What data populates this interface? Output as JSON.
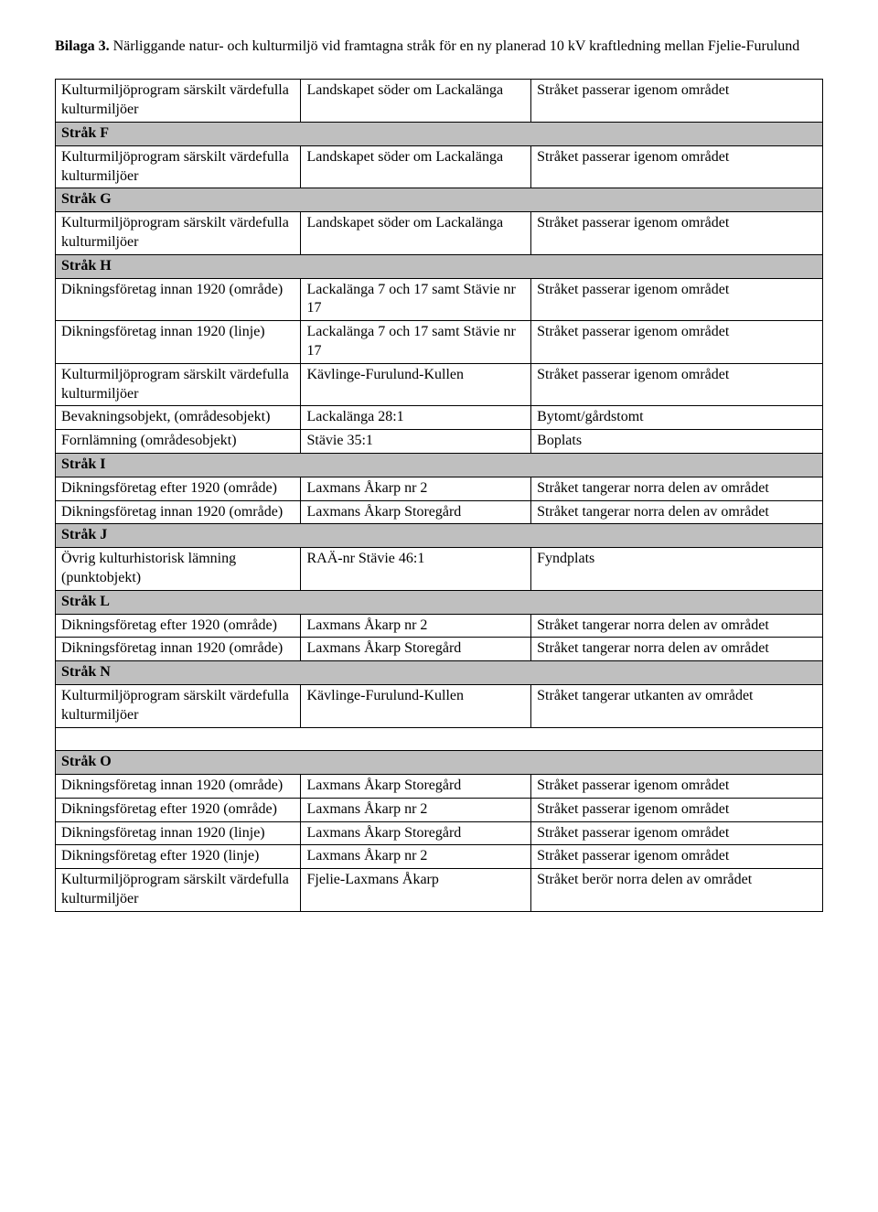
{
  "title": {
    "bold": "Bilaga 3.",
    "rest": " Närliggande natur- och kulturmiljö vid framtagna stråk för en ny planerad 10 kV kraftledning mellan Fjelie-Furulund"
  },
  "colors": {
    "section_bg": "#bfbfbf",
    "border": "#000000",
    "text": "#000000",
    "bg": "#ffffff"
  },
  "rows": [
    {
      "type": "data",
      "c1": "Kulturmiljöprogram särskilt värdefulla kulturmiljöer",
      "c2": "Landskapet söder om Lackalänga",
      "c3": "Stråket passerar igenom området"
    },
    {
      "type": "section",
      "label": "Stråk F"
    },
    {
      "type": "data",
      "c1": "Kulturmiljöprogram särskilt värdefulla kulturmiljöer",
      "c2": "Landskapet söder om Lackalänga",
      "c3": "Stråket passerar igenom området"
    },
    {
      "type": "section",
      "label": "Stråk G"
    },
    {
      "type": "data",
      "c1": "Kulturmiljöprogram särskilt värdefulla kulturmiljöer",
      "c2": "Landskapet söder om Lackalänga",
      "c3": "Stråket passerar igenom området"
    },
    {
      "type": "section",
      "label": "Stråk H"
    },
    {
      "type": "data",
      "c1": "Dikningsföretag innan 1920 (område)",
      "c2": "Lackalänga 7 och 17 samt Stävie nr 17",
      "c3": "Stråket passerar igenom området"
    },
    {
      "type": "data",
      "c1": "Dikningsföretag innan 1920 (linje)",
      "c2": "Lackalänga 7 och 17 samt Stävie nr 17",
      "c3": "Stråket passerar igenom området"
    },
    {
      "type": "data",
      "c1": "Kulturmiljöprogram särskilt värdefulla kulturmiljöer",
      "c2": "Kävlinge-Furulund-Kullen",
      "c3": "Stråket passerar igenom området"
    },
    {
      "type": "data",
      "c1": "Bevakningsobjekt, (områdesobjekt)",
      "c2": "Lackalänga 28:1",
      "c3": "Bytomt/gårdstomt"
    },
    {
      "type": "data",
      "c1": "Fornlämning (områdesobjekt)",
      "c2": "Stävie 35:1",
      "c3": "Boplats"
    },
    {
      "type": "section",
      "label": "Stråk I"
    },
    {
      "type": "data",
      "c1": "Dikningsföretag efter 1920 (område)",
      "c2": "Laxmans Åkarp nr 2",
      "c3": "Stråket tangerar norra delen av området"
    },
    {
      "type": "data",
      "c1": "Dikningsföretag innan 1920 (område)",
      "c2": "Laxmans Åkarp Storegård",
      "c3": "Stråket tangerar norra delen av området"
    },
    {
      "type": "section",
      "label": "Stråk J"
    },
    {
      "type": "data",
      "c1": "Övrig kulturhistorisk lämning (punktobjekt)",
      "c2": "RAÄ-nr Stävie 46:1",
      "c3": "Fyndplats"
    },
    {
      "type": "section",
      "label": "Stråk L"
    },
    {
      "type": "data",
      "c1": "Dikningsföretag efter 1920 (område)",
      "c2": "Laxmans Åkarp nr 2",
      "c3": "Stråket tangerar norra delen av området"
    },
    {
      "type": "data",
      "c1": "Dikningsföretag innan 1920 (område)",
      "c2": "Laxmans Åkarp Storegård",
      "c3": "Stråket tangerar norra delen av området"
    },
    {
      "type": "section",
      "label": "Stråk N"
    },
    {
      "type": "data",
      "c1": "Kulturmiljöprogram särskilt värdefulla kulturmiljöer",
      "c2": "Kävlinge-Furulund-Kullen",
      "c3": "Stråket tangerar utkanten av området"
    },
    {
      "type": "blank"
    },
    {
      "type": "section",
      "label": "Stråk O"
    },
    {
      "type": "data",
      "c1": "Dikningsföretag innan 1920 (område)",
      "c2": "Laxmans Åkarp Storegård",
      "c3": "Stråket passerar igenom området"
    },
    {
      "type": "data",
      "c1": "Dikningsföretag efter 1920 (område)",
      "c2": "Laxmans Åkarp nr 2",
      "c3": "Stråket passerar igenom området"
    },
    {
      "type": "data",
      "c1": "Dikningsföretag innan 1920 (linje)",
      "c2": "Laxmans Åkarp Storegård",
      "c3": "Stråket passerar igenom området"
    },
    {
      "type": "data",
      "c1": "Dikningsföretag efter 1920 (linje)",
      "c2": "Laxmans Åkarp nr 2",
      "c3": "Stråket passerar igenom området"
    },
    {
      "type": "data",
      "c1": "Kulturmiljöprogram särskilt värdefulla kulturmiljöer",
      "c2": "Fjelie-Laxmans Åkarp",
      "c3": "Stråket berör norra delen av området"
    }
  ]
}
